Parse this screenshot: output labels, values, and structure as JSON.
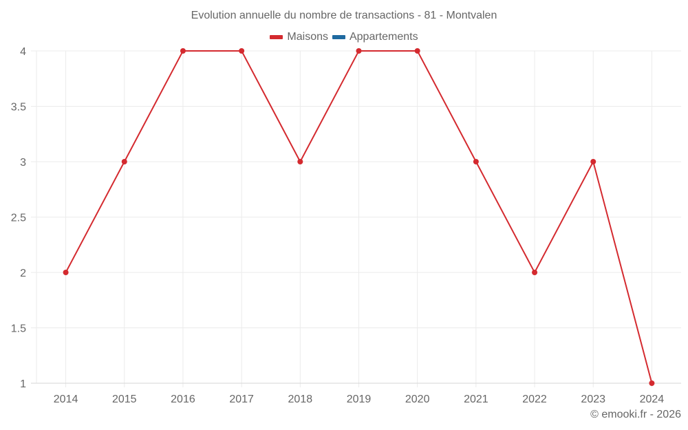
{
  "title": "Evolution annuelle du nombre de transactions - 81 - Montvalen",
  "legend": [
    {
      "label": "Maisons",
      "color": "#d42a2f"
    },
    {
      "label": "Appartements",
      "color": "#1f6aa0"
    }
  ],
  "credit": "© emooki.fr - 2026",
  "colors": {
    "grid": "#ebebeb",
    "axis": "#d6d6d6",
    "text": "#666666"
  },
  "chart_data": {
    "type": "line",
    "title": "Evolution annuelle du nombre de transactions - 81 - Montvalen",
    "xlabel": "",
    "ylabel": "",
    "categories": [
      "2014",
      "2015",
      "2016",
      "2017",
      "2018",
      "2019",
      "2020",
      "2021",
      "2022",
      "2023",
      "2024"
    ],
    "series": [
      {
        "name": "Maisons",
        "color": "#d42a2f",
        "values": [
          2,
          3,
          4,
          4,
          3,
          4,
          4,
          3,
          2,
          3,
          1
        ]
      },
      {
        "name": "Appartements",
        "color": "#1f6aa0",
        "values": []
      }
    ],
    "ylim": [
      1,
      4
    ],
    "yticks": [
      "1",
      "1.5",
      "2",
      "2.5",
      "3",
      "3.5",
      "4"
    ],
    "grid": true,
    "legend_position": "top"
  }
}
